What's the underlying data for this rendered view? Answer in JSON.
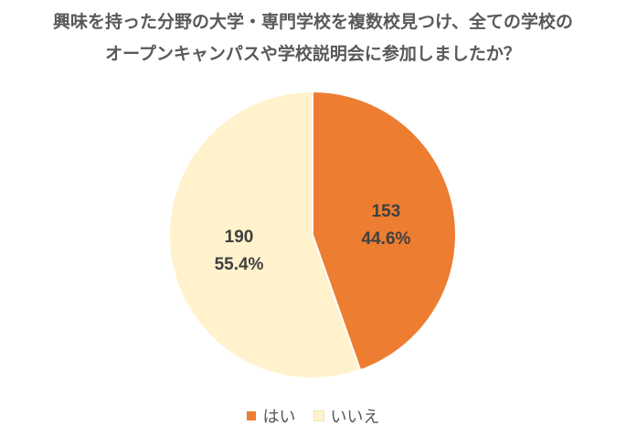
{
  "chart_data": {
    "type": "pie",
    "title_lines": [
      "興味を持った分野の大学・専門学校を複数校見つけ、全ての学校の",
      "オープンキャンパスや学校説明会に参加しましたか？"
    ],
    "categories": [
      "はい",
      "いいえ"
    ],
    "values": [
      153,
      190
    ],
    "percent_labels": [
      "44.6%",
      "55.4%"
    ],
    "colors": [
      "#ED7D31",
      "#FFF2CC"
    ],
    "start_angle": "top",
    "direction": "clockwise",
    "legend_position": "bottom"
  }
}
